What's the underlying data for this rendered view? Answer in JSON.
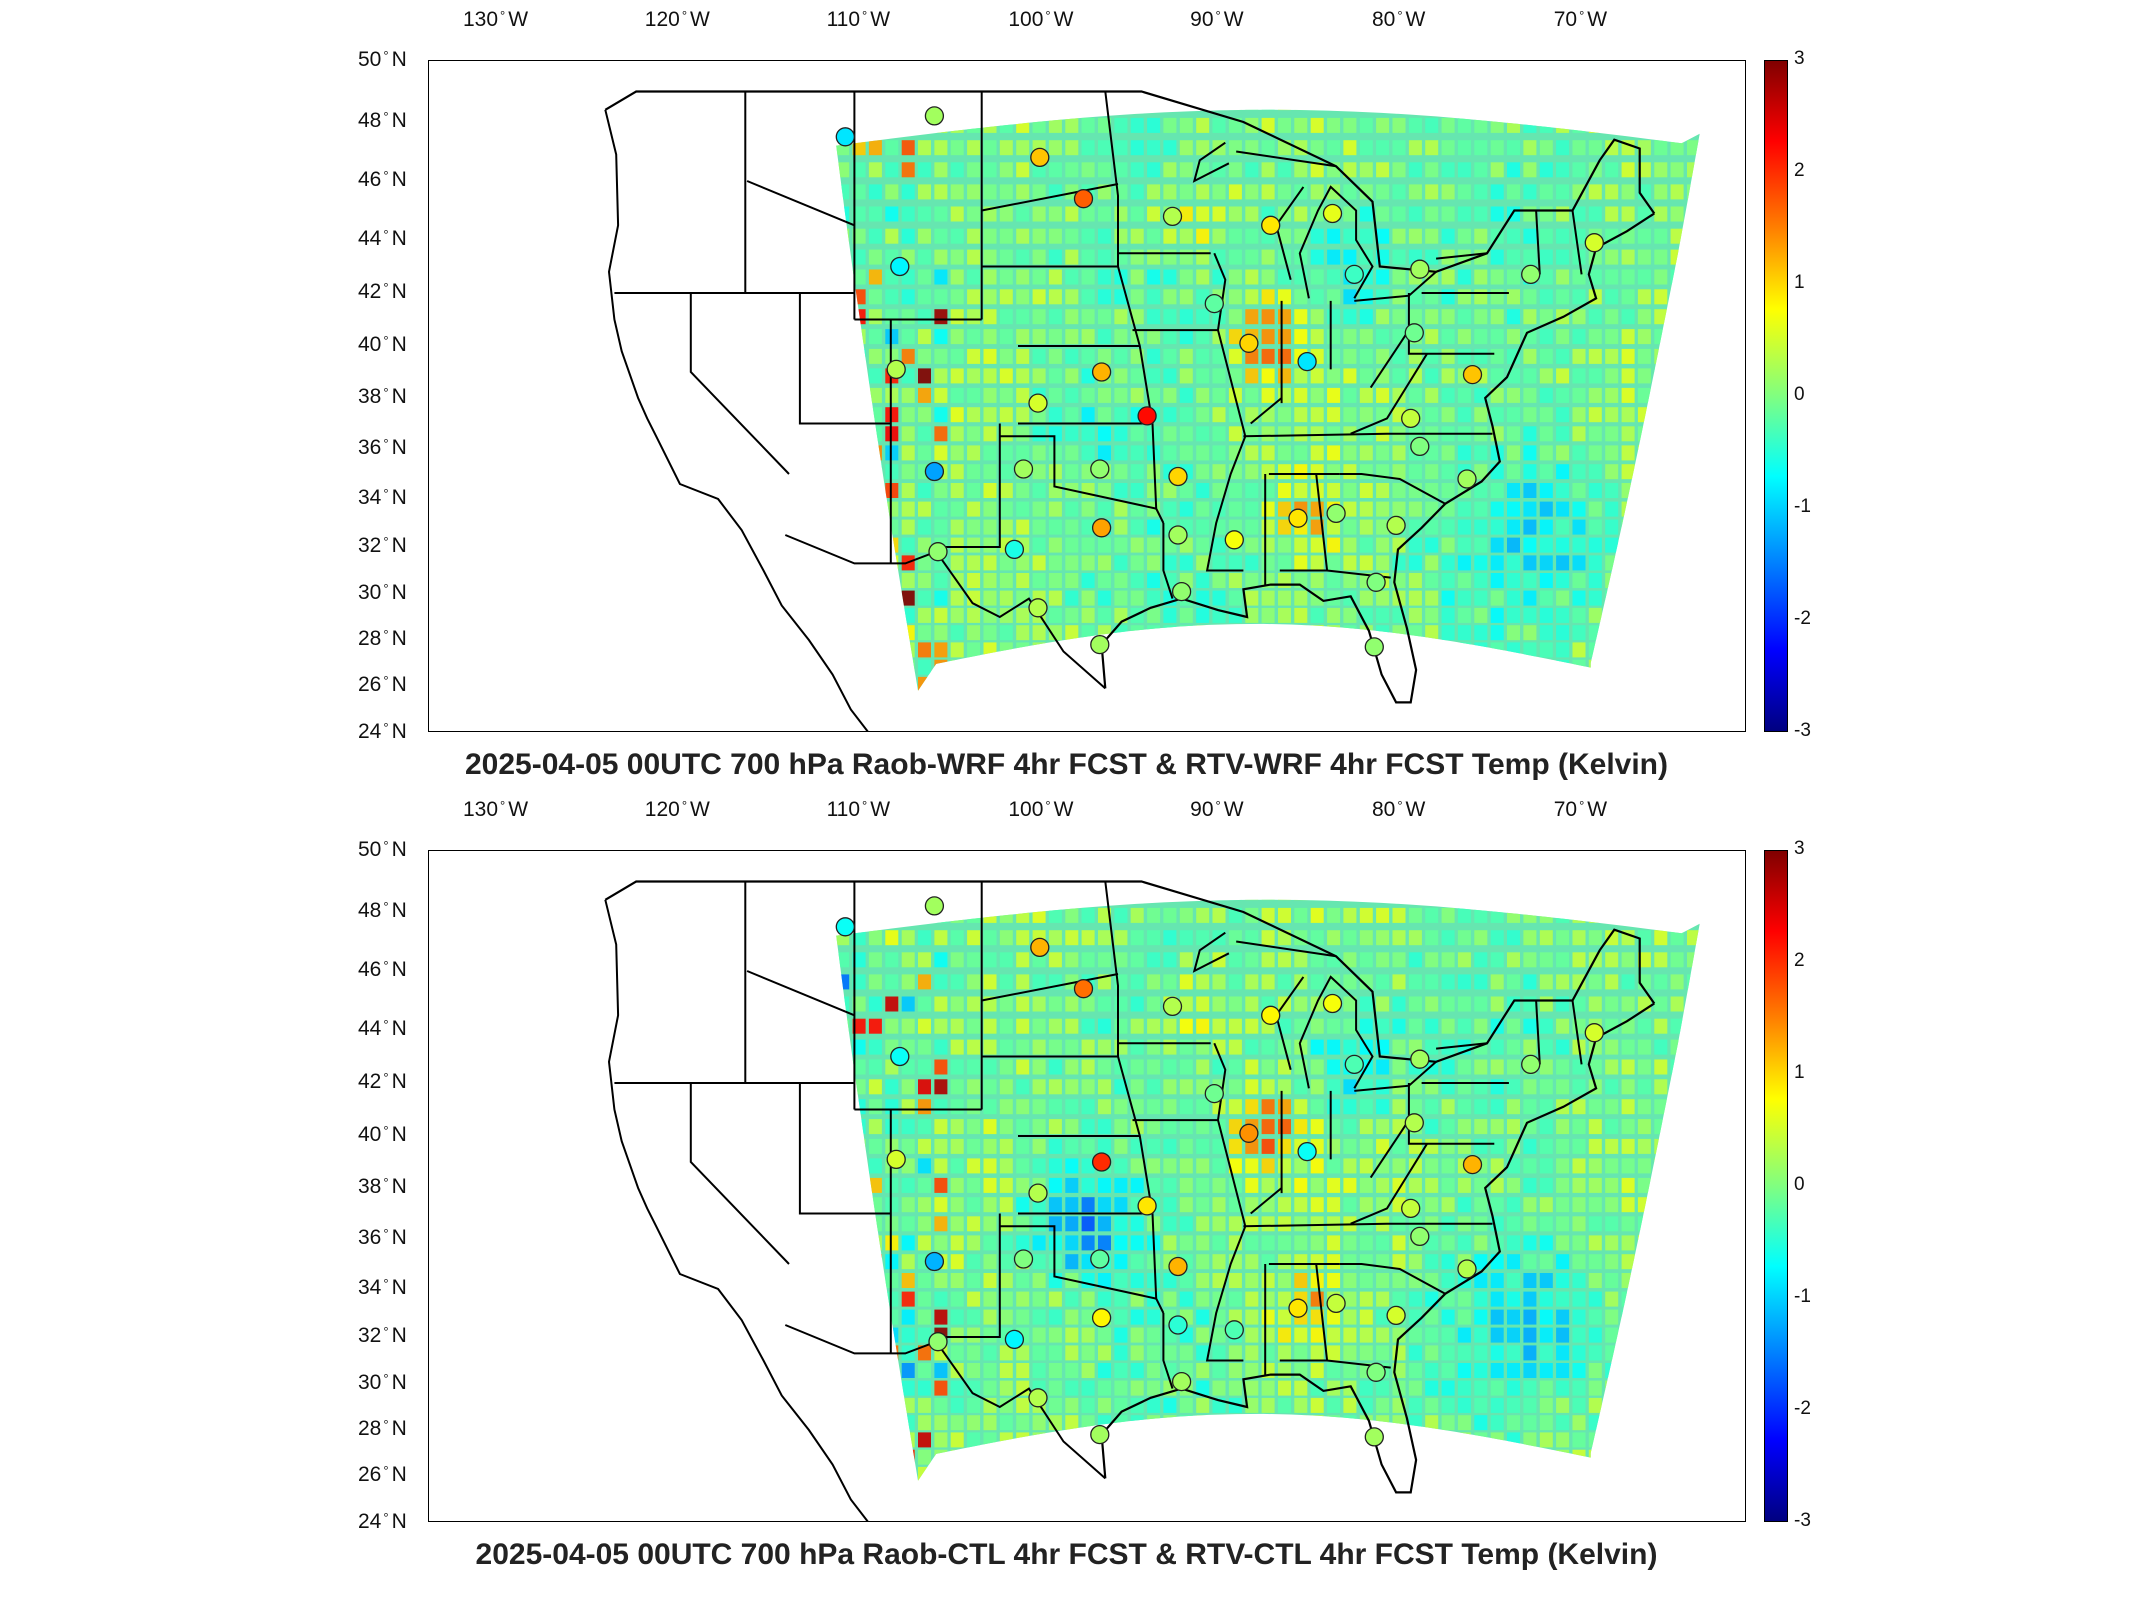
{
  "panels": [
    {
      "title": "2025-04-05 00UTC 700 hPa Raob-WRF 4hr FCST & RTV-WRF 4hr FCST Temp (Kelvin)",
      "stations": [
        {
          "lon": -111.5,
          "lat": 47.5,
          "v": -0.9
        },
        {
          "lon": -106.6,
          "lat": 48.2,
          "v": 0.2
        },
        {
          "lon": -100.8,
          "lat": 46.8,
          "v": 1.1
        },
        {
          "lon": -98.4,
          "lat": 45.4,
          "v": 1.7
        },
        {
          "lon": -93.5,
          "lat": 44.8,
          "v": 0.3
        },
        {
          "lon": -88.1,
          "lat": 44.5,
          "v": 0.9
        },
        {
          "lon": -84.7,
          "lat": 44.9,
          "v": 0.6
        },
        {
          "lon": -108.5,
          "lat": 43.0,
          "v": -0.8
        },
        {
          "lon": -83.5,
          "lat": 42.7,
          "v": -0.4
        },
        {
          "lon": -79.9,
          "lat": 42.9,
          "v": 0.2
        },
        {
          "lon": -73.8,
          "lat": 42.7,
          "v": 0.1
        },
        {
          "lon": -70.3,
          "lat": 43.9,
          "v": 0.5
        },
        {
          "lon": -91.2,
          "lat": 41.6,
          "v": -0.2
        },
        {
          "lon": -89.3,
          "lat": 40.1,
          "v": 1.0
        },
        {
          "lon": -86.1,
          "lat": 39.4,
          "v": -0.9
        },
        {
          "lon": -80.2,
          "lat": 40.5,
          "v": -0.1
        },
        {
          "lon": -77.0,
          "lat": 38.9,
          "v": 1.1
        },
        {
          "lon": -108.7,
          "lat": 39.1,
          "v": 0.3
        },
        {
          "lon": -97.4,
          "lat": 39.0,
          "v": 1.2
        },
        {
          "lon": -100.9,
          "lat": 37.8,
          "v": 0.5
        },
        {
          "lon": -94.9,
          "lat": 37.3,
          "v": 2.2
        },
        {
          "lon": -80.4,
          "lat": 37.2,
          "v": 0.4
        },
        {
          "lon": -106.6,
          "lat": 35.1,
          "v": -1.3
        },
        {
          "lon": -101.7,
          "lat": 35.2,
          "v": 0.2
        },
        {
          "lon": -97.5,
          "lat": 35.2,
          "v": 0.1
        },
        {
          "lon": -93.2,
          "lat": 34.9,
          "v": 1.0
        },
        {
          "lon": -79.9,
          "lat": 36.1,
          "v": 0.0
        },
        {
          "lon": -77.3,
          "lat": 34.8,
          "v": 0.2
        },
        {
          "lon": -97.4,
          "lat": 32.8,
          "v": 1.3
        },
        {
          "lon": -90.1,
          "lat": 32.3,
          "v": 0.7
        },
        {
          "lon": -86.6,
          "lat": 33.2,
          "v": 0.9
        },
        {
          "lon": -84.5,
          "lat": 33.4,
          "v": 0.1
        },
        {
          "lon": -81.2,
          "lat": 32.9,
          "v": 0.3
        },
        {
          "lon": -106.4,
          "lat": 31.8,
          "v": 0.1
        },
        {
          "lon": -102.2,
          "lat": 31.9,
          "v": -0.6
        },
        {
          "lon": -93.2,
          "lat": 32.5,
          "v": 0.2
        },
        {
          "lon": -100.9,
          "lat": 29.4,
          "v": 0.3
        },
        {
          "lon": -93.0,
          "lat": 30.1,
          "v": 0.1
        },
        {
          "lon": -82.3,
          "lat": 30.5,
          "v": 0.0
        },
        {
          "lon": -97.5,
          "lat": 27.8,
          "v": 0.2
        },
        {
          "lon": -82.4,
          "lat": 27.7,
          "v": 0.1
        }
      ]
    },
    {
      "title": "2025-04-05 00UTC 700 hPa Raob-CTL 4hr FCST & RTV-CTL 4hr FCST Temp (Kelvin)",
      "stations": [
        {
          "lon": -111.5,
          "lat": 47.5,
          "v": -0.7
        },
        {
          "lon": -106.6,
          "lat": 48.2,
          "v": 0.2
        },
        {
          "lon": -100.8,
          "lat": 46.8,
          "v": 1.2
        },
        {
          "lon": -98.4,
          "lat": 45.4,
          "v": 1.6
        },
        {
          "lon": -93.5,
          "lat": 44.8,
          "v": 0.3
        },
        {
          "lon": -88.1,
          "lat": 44.5,
          "v": 0.8
        },
        {
          "lon": -84.7,
          "lat": 44.9,
          "v": 0.7
        },
        {
          "lon": -108.5,
          "lat": 43.0,
          "v": -0.7
        },
        {
          "lon": -83.5,
          "lat": 42.7,
          "v": -0.3
        },
        {
          "lon": -79.9,
          "lat": 42.9,
          "v": 0.2
        },
        {
          "lon": -73.8,
          "lat": 42.7,
          "v": 0.1
        },
        {
          "lon": -70.3,
          "lat": 43.9,
          "v": 0.5
        },
        {
          "lon": -91.2,
          "lat": 41.6,
          "v": -0.1
        },
        {
          "lon": -89.3,
          "lat": 40.1,
          "v": 1.4
        },
        {
          "lon": -86.1,
          "lat": 39.4,
          "v": -0.7
        },
        {
          "lon": -80.2,
          "lat": 40.5,
          "v": 0.3
        },
        {
          "lon": -77.0,
          "lat": 38.9,
          "v": 1.2
        },
        {
          "lon": -108.7,
          "lat": 39.1,
          "v": 0.5
        },
        {
          "lon": -97.4,
          "lat": 39.0,
          "v": 2.0
        },
        {
          "lon": -100.9,
          "lat": 37.8,
          "v": 0.3
        },
        {
          "lon": -94.9,
          "lat": 37.3,
          "v": 0.9
        },
        {
          "lon": -80.4,
          "lat": 37.2,
          "v": 0.4
        },
        {
          "lon": -106.6,
          "lat": 35.1,
          "v": -1.2
        },
        {
          "lon": -101.7,
          "lat": 35.2,
          "v": 0.0
        },
        {
          "lon": -97.5,
          "lat": 35.2,
          "v": -0.2
        },
        {
          "lon": -93.2,
          "lat": 34.9,
          "v": 1.2
        },
        {
          "lon": -79.9,
          "lat": 36.1,
          "v": 0.1
        },
        {
          "lon": -77.3,
          "lat": 34.8,
          "v": 0.3
        },
        {
          "lon": -97.4,
          "lat": 32.8,
          "v": 0.8
        },
        {
          "lon": -90.1,
          "lat": 32.3,
          "v": -0.3
        },
        {
          "lon": -86.6,
          "lat": 33.2,
          "v": 0.9
        },
        {
          "lon": -84.5,
          "lat": 33.4,
          "v": 0.4
        },
        {
          "lon": -81.2,
          "lat": 32.9,
          "v": 0.5
        },
        {
          "lon": -106.4,
          "lat": 31.8,
          "v": 0.1
        },
        {
          "lon": -102.2,
          "lat": 31.9,
          "v": -0.8
        },
        {
          "lon": -93.2,
          "lat": 32.5,
          "v": -0.5
        },
        {
          "lon": -100.9,
          "lat": 29.4,
          "v": 0.3
        },
        {
          "lon": -93.0,
          "lat": 30.1,
          "v": 0.2
        },
        {
          "lon": -82.3,
          "lat": 30.5,
          "v": 0.0
        },
        {
          "lon": -97.5,
          "lat": 27.8,
          "v": 0.2
        },
        {
          "lon": -82.4,
          "lat": 27.7,
          "v": 0.2
        }
      ]
    }
  ],
  "lon_ticks": [
    {
      "value": -130,
      "label": "130",
      "hemi": "W"
    },
    {
      "value": -120,
      "label": "120",
      "hemi": "W"
    },
    {
      "value": -110,
      "label": "110",
      "hemi": "W"
    },
    {
      "value": -100,
      "label": "100",
      "hemi": "W"
    },
    {
      "value": -90,
      "label": "90",
      "hemi": "W"
    },
    {
      "value": -80,
      "label": "80",
      "hemi": "W"
    },
    {
      "value": -70,
      "label": "70",
      "hemi": "W"
    }
  ],
  "lat_ticks": [
    {
      "value": 50,
      "label": "50",
      "hemi": "N"
    },
    {
      "value": 48,
      "label": "48",
      "hemi": "N"
    },
    {
      "value": 46,
      "label": "46",
      "hemi": "N"
    },
    {
      "value": 44,
      "label": "44",
      "hemi": "N"
    },
    {
      "value": 42,
      "label": "42",
      "hemi": "N"
    },
    {
      "value": 40,
      "label": "40",
      "hemi": "N"
    },
    {
      "value": 38,
      "label": "38",
      "hemi": "N"
    },
    {
      "value": 36,
      "label": "36",
      "hemi": "N"
    },
    {
      "value": 34,
      "label": "34",
      "hemi": "N"
    },
    {
      "value": 32,
      "label": "32",
      "hemi": "N"
    },
    {
      "value": 30,
      "label": "30",
      "hemi": "N"
    },
    {
      "value": 28,
      "label": "28",
      "hemi": "N"
    },
    {
      "value": 26,
      "label": "26",
      "hemi": "N"
    },
    {
      "value": 24,
      "label": "24",
      "hemi": "N"
    }
  ],
  "colorbar": {
    "ticks": [
      "3",
      "2",
      "1",
      "0",
      "-1",
      "-2",
      "-3"
    ],
    "range": [
      -3,
      3
    ],
    "colormap": "jet",
    "colors": [
      "#000080",
      "#0000ff",
      "#0080ff",
      "#00ffff",
      "#80ff80",
      "#ffff00",
      "#ff8000",
      "#ff0000",
      "#800000"
    ]
  },
  "degree_symbol": "°"
}
